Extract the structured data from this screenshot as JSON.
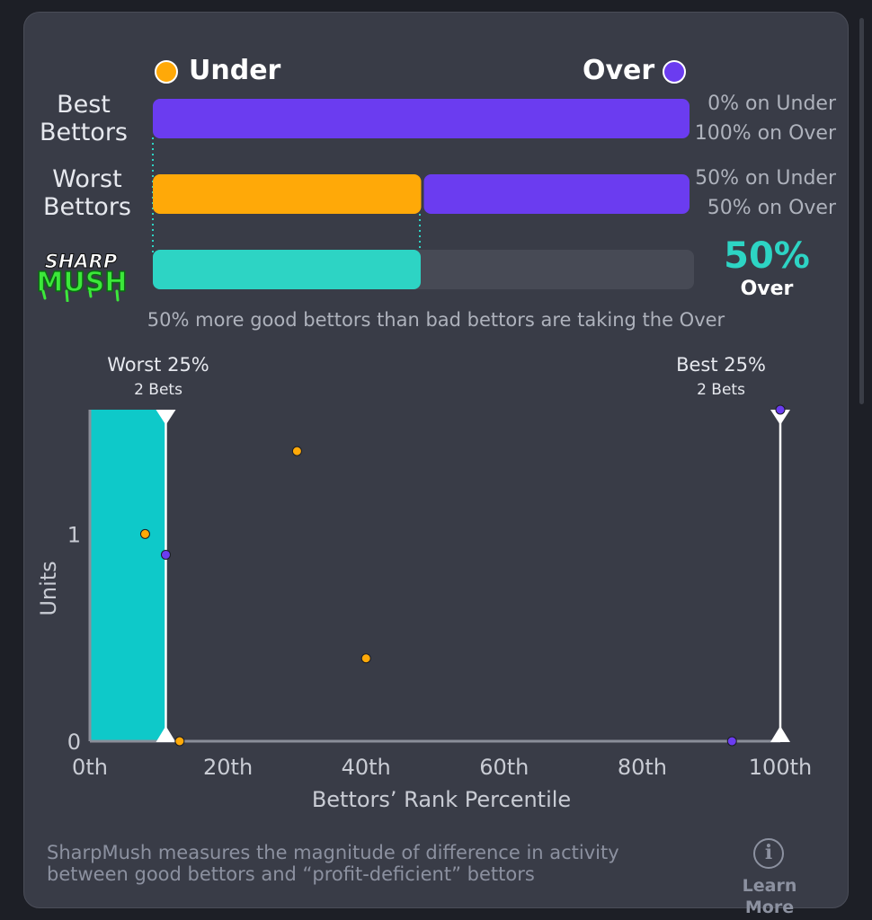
{
  "legend": {
    "under_label": "Under",
    "over_label": "Over"
  },
  "colors": {
    "under": "#ffa908",
    "over": "#6b3cf0",
    "accent": "#2dd4c4",
    "range_fill": "#0ec9c9"
  },
  "rows": {
    "best": {
      "label_line1": "Best",
      "label_line2": "Bettors",
      "under_pct": 0,
      "over_pct": 100,
      "text_under": "0% on Under",
      "text_over": "100% on Over"
    },
    "worst": {
      "label_line1": "Worst",
      "label_line2": "Bettors",
      "under_pct": 50,
      "over_pct": 50,
      "text_under": "50% on Under",
      "text_over": "50% on Over"
    }
  },
  "sharpmush": {
    "logo_line1": "SHARP",
    "logo_line2": "MUSH",
    "value": 50,
    "value_text": "50%",
    "side_text": "Over"
  },
  "summary_text": "50% more good bettors than bad bettors are taking the Over",
  "chart_data": {
    "type": "scatter",
    "xlabel": "Bettors’ Rank Percentile",
    "ylabel": "Units",
    "xlim": [
      0,
      100
    ],
    "ylim": [
      0,
      1.6
    ],
    "x_ticks": [
      0,
      20,
      40,
      60,
      80,
      100
    ],
    "x_tick_labels": [
      "0th",
      "20th",
      "40th",
      "60th",
      "80th",
      "100th"
    ],
    "y_ticks": [
      0,
      1
    ],
    "y_tick_labels": [
      "0",
      "1"
    ],
    "worst_marker": {
      "label": "Worst 25%",
      "sub": "2 Bets",
      "x": 11
    },
    "best_marker": {
      "label": "Best 25%",
      "sub": "2 Bets",
      "x": 100
    },
    "series": [
      {
        "name": "Under",
        "points": [
          [
            8,
            1.0
          ],
          [
            30,
            1.4
          ],
          [
            40,
            0.4
          ],
          [
            13,
            0.0
          ]
        ]
      },
      {
        "name": "Over",
        "points": [
          [
            11,
            0.9
          ],
          [
            100,
            1.6
          ],
          [
            93,
            0.0
          ]
        ]
      }
    ]
  },
  "footer": {
    "text_line1": "SharpMush measures the magnitude of difference in activity",
    "text_line2": "between good bettors and “profit-deficient” bettors",
    "info_glyph": "i",
    "learn_more": "Learn More"
  }
}
